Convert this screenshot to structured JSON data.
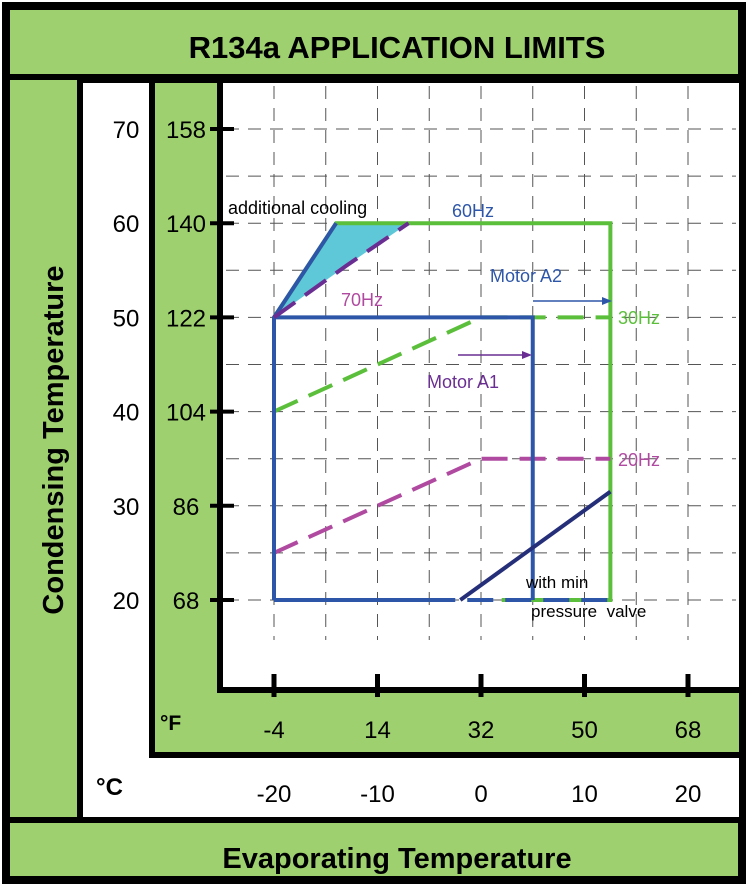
{
  "title": "R134a APPLICATION LIMITS",
  "xlabel": "Evaporating Temperature",
  "ylabel": "Condensing Temperature",
  "unit_f": "°F",
  "unit_c": "°C",
  "colors": {
    "green_fill": "#9fd06f",
    "frame": "#000000",
    "blue": "#2e56a8",
    "green": "#5cbf3c",
    "magenta": "#b04aa0",
    "purple": "#6a2e92",
    "navy": "#252e78",
    "cyan": "#5ec8d8"
  },
  "chart_data": {
    "type": "line",
    "title": "R134a APPLICATION LIMITS",
    "xlabel": "Evaporating Temperature",
    "ylabel": "Condensing Temperature",
    "x_unit": "°C",
    "y_unit": "°C",
    "xlim": [
      -20,
      20
    ],
    "ylim": [
      20,
      70
    ],
    "x_ticks_c": [
      "-20",
      "-10",
      "0",
      "10",
      "20"
    ],
    "x_ticks_f": [
      "-4",
      "14",
      "32",
      "50",
      "68"
    ],
    "y_ticks_c": [
      "70",
      "60",
      "50",
      "40",
      "30",
      "20"
    ],
    "y_ticks_f": [
      "158",
      "140",
      "122",
      "104",
      "86",
      "68"
    ],
    "grid": true,
    "series": [
      {
        "name": "60Hz",
        "style": "solid",
        "color": "green",
        "x": [
          -20,
          -14,
          12.5,
          12.5,
          2
        ],
        "y": [
          50,
          60,
          60,
          20,
          20
        ]
      },
      {
        "name": "30Hz",
        "style": "dashed",
        "color": "green",
        "x": [
          -20,
          0,
          12.5
        ],
        "y": [
          40,
          50,
          50
        ]
      },
      {
        "name": "20Hz",
        "style": "dashed",
        "color": "magenta",
        "x": [
          -20,
          0,
          12.5
        ],
        "y": [
          25,
          35,
          35
        ]
      },
      {
        "name": "70Hz",
        "style": "solid",
        "color": "blue",
        "x": [
          -20,
          5,
          5
        ],
        "y": [
          50,
          50,
          20
        ]
      },
      {
        "name": "Motor A2",
        "style": "solid",
        "color": "blue",
        "x": [
          -20,
          -20,
          -14
        ],
        "y": [
          20,
          50,
          60
        ]
      },
      {
        "name": "with min pressure valve",
        "style": "solid",
        "color": "navy",
        "x": [
          -2,
          12.5
        ],
        "y": [
          20,
          31.5
        ]
      },
      {
        "name": "additional cooling",
        "style": "dashed",
        "color": "purple",
        "x": [
          -20,
          -13,
          -7
        ],
        "y": [
          50,
          55.5,
          60
        ]
      }
    ],
    "annotations": [
      "additional cooling",
      "60Hz",
      "Motor A2",
      "70Hz",
      "30Hz",
      "Motor A1",
      "20Hz",
      "with min",
      "pressure  valve"
    ]
  }
}
